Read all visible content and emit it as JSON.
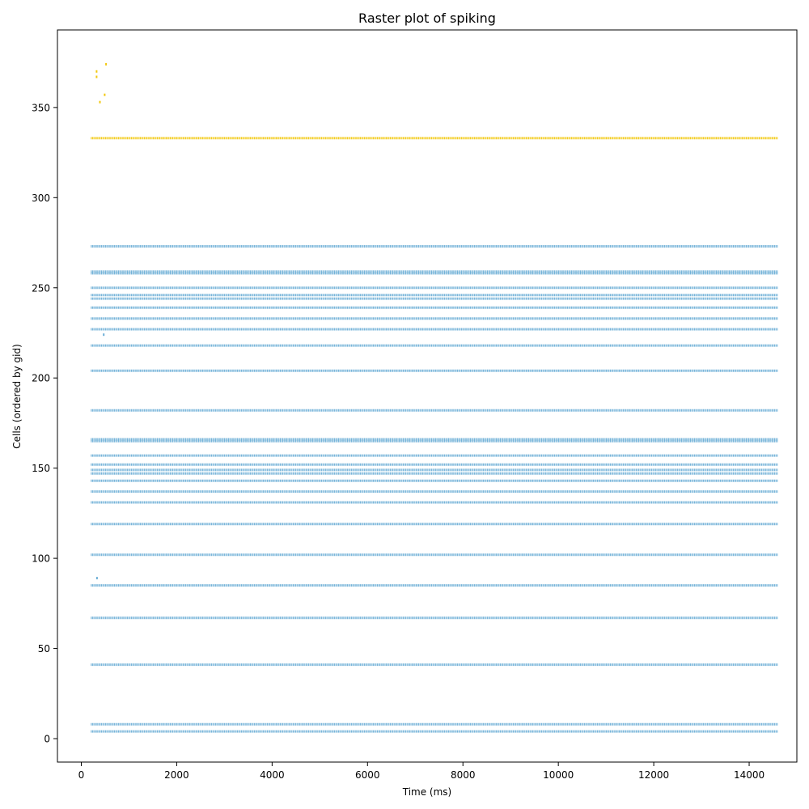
{
  "chart_data": {
    "type": "scatter",
    "title": "Raster plot of spiking",
    "xlabel": "Time (ms)",
    "ylabel": "Cells (ordered by gid)",
    "xlim": [
      -500,
      15000
    ],
    "ylim": [
      -13,
      393
    ],
    "xticks": [
      0,
      2000,
      4000,
      6000,
      8000,
      10000,
      12000,
      14000
    ],
    "yticks": [
      0,
      50,
      100,
      150,
      200,
      250,
      300,
      350
    ],
    "grid": false,
    "legend": "none",
    "series": [
      {
        "color": "#6baed6",
        "continuous_rows": {
          "x_range": [
            200,
            14600
          ],
          "cells": [
            4,
            8,
            41,
            67,
            85,
            102,
            119,
            131,
            137,
            143,
            147,
            149,
            152,
            157,
            165,
            166,
            182,
            204,
            218,
            227,
            233,
            239,
            244,
            246,
            250,
            258,
            259,
            273
          ]
        },
        "points": [
          {
            "x": 330,
            "y": 89
          },
          {
            "x": 470,
            "y": 224
          }
        ]
      },
      {
        "color": "#f2c80f",
        "continuous_rows": {
          "x_range": [
            200,
            14600
          ],
          "cells": [
            333
          ]
        },
        "points": [
          {
            "x": 320,
            "y": 367
          },
          {
            "x": 320,
            "y": 370
          },
          {
            "x": 390,
            "y": 353
          },
          {
            "x": 490,
            "y": 357
          },
          {
            "x": 520,
            "y": 374
          }
        ]
      }
    ]
  }
}
